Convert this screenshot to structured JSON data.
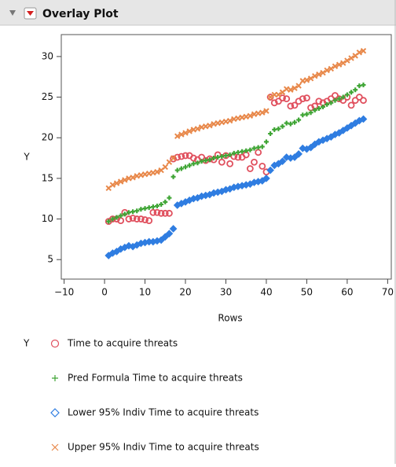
{
  "chart_data": {
    "type": "scatter",
    "title": "Overlay Plot",
    "x_label": "Rows",
    "y_label": "Y",
    "legend_title": "Y",
    "xlim": [
      -10.7,
      70.9
    ],
    "ylim": [
      2.6,
      32.7
    ],
    "xticks": [
      {
        "value": -10,
        "label": "−10"
      },
      0,
      10,
      20,
      30,
      40,
      50,
      60,
      70
    ],
    "yticks": [
      5,
      10,
      15,
      20,
      25,
      30
    ],
    "x": [
      1,
      2,
      3,
      4,
      5,
      6,
      7,
      8,
      9,
      10,
      11,
      12,
      13,
      14,
      15,
      16,
      17,
      18,
      19,
      20,
      21,
      22,
      23,
      24,
      25,
      26,
      27,
      28,
      29,
      30,
      31,
      32,
      33,
      34,
      35,
      36,
      37,
      38,
      39,
      40,
      41,
      42,
      43,
      44,
      45,
      46,
      47,
      48,
      49,
      50,
      51,
      52,
      53,
      54,
      55,
      56,
      57,
      58,
      59,
      60,
      61,
      62,
      63,
      64
    ],
    "series": [
      {
        "name": "Time to acquire threats",
        "color": "#e0505e",
        "marker": "circle",
        "values": [
          9.7,
          10.0,
          10.0,
          9.8,
          10.8,
          10.0,
          10.1,
          10.0,
          10.0,
          9.9,
          9.8,
          10.8,
          10.8,
          10.7,
          10.7,
          10.7,
          17.4,
          17.6,
          17.7,
          17.8,
          17.8,
          17.5,
          17.3,
          17.6,
          17.2,
          17.4,
          17.3,
          17.9,
          17.0,
          17.8,
          16.8,
          17.7,
          17.6,
          17.6,
          17.9,
          16.2,
          17.0,
          18.2,
          16.5,
          15.8,
          25.0,
          24.3,
          24.5,
          24.9,
          24.8,
          23.9,
          24.0,
          24.5,
          24.8,
          24.9,
          23.7,
          23.9,
          24.5,
          24.3,
          24.5,
          24.8,
          25.2,
          24.8,
          24.6,
          25.0,
          24.0,
          24.6,
          25.0,
          24.6
        ]
      },
      {
        "name": "Pred Formula Time to acquire threats",
        "color": "#3fa535",
        "marker": "plus",
        "values": [
          9.7,
          10.0,
          10.2,
          10.4,
          10.6,
          10.8,
          10.9,
          11.0,
          11.2,
          11.3,
          11.4,
          11.5,
          11.6,
          11.8,
          12.1,
          12.6,
          15.2,
          16.0,
          16.2,
          16.4,
          16.6,
          16.8,
          16.9,
          17.1,
          17.2,
          17.3,
          17.5,
          17.6,
          17.7,
          17.8,
          17.9,
          18.1,
          18.2,
          18.3,
          18.4,
          18.5,
          18.7,
          18.8,
          18.9,
          19.5,
          20.5,
          21.0,
          21.1,
          21.4,
          21.8,
          21.7,
          21.9,
          22.2,
          22.8,
          22.9,
          23.1,
          23.4,
          23.6,
          23.8,
          24.1,
          24.3,
          24.6,
          24.8,
          25.0,
          25.3,
          25.6,
          25.9,
          26.4,
          26.5
        ]
      },
      {
        "name": "Lower 95% Indiv Time to acquire threats",
        "color": "#2f7de1",
        "marker": "diamond",
        "values": [
          5.5,
          5.8,
          6.0,
          6.3,
          6.5,
          6.7,
          6.6,
          6.8,
          7.0,
          7.1,
          7.2,
          7.2,
          7.3,
          7.4,
          7.8,
          8.2,
          8.8,
          11.7,
          11.9,
          12.1,
          12.3,
          12.5,
          12.6,
          12.8,
          12.9,
          13.0,
          13.2,
          13.3,
          13.4,
          13.6,
          13.7,
          13.9,
          14.0,
          14.1,
          14.2,
          14.3,
          14.5,
          14.6,
          14.7,
          15.0,
          16.0,
          16.6,
          16.8,
          17.1,
          17.6,
          17.5,
          17.6,
          18.0,
          18.7,
          18.6,
          18.8,
          19.2,
          19.5,
          19.7,
          19.9,
          20.1,
          20.4,
          20.6,
          20.9,
          21.2,
          21.5,
          21.8,
          22.1,
          22.3
        ]
      },
      {
        "name": "Upper 95% Indiv Time to acquire threats",
        "color": "#e8884a",
        "marker": "cross",
        "values": [
          13.8,
          14.2,
          14.4,
          14.6,
          14.8,
          15.0,
          15.1,
          15.3,
          15.4,
          15.5,
          15.6,
          15.7,
          15.8,
          16.0,
          16.4,
          17.0,
          17.5,
          20.2,
          20.4,
          20.6,
          20.8,
          21.0,
          21.1,
          21.3,
          21.4,
          21.5,
          21.7,
          21.8,
          21.9,
          22.0,
          22.1,
          22.3,
          22.4,
          22.5,
          22.6,
          22.7,
          22.9,
          23.0,
          23.1,
          23.3,
          25.0,
          25.3,
          25.3,
          25.6,
          26.0,
          25.9,
          26.1,
          26.4,
          27.0,
          27.1,
          27.3,
          27.6,
          27.8,
          28.0,
          28.3,
          28.5,
          28.8,
          29.0,
          29.2,
          29.5,
          29.8,
          30.1,
          30.5,
          30.7
        ]
      }
    ]
  }
}
